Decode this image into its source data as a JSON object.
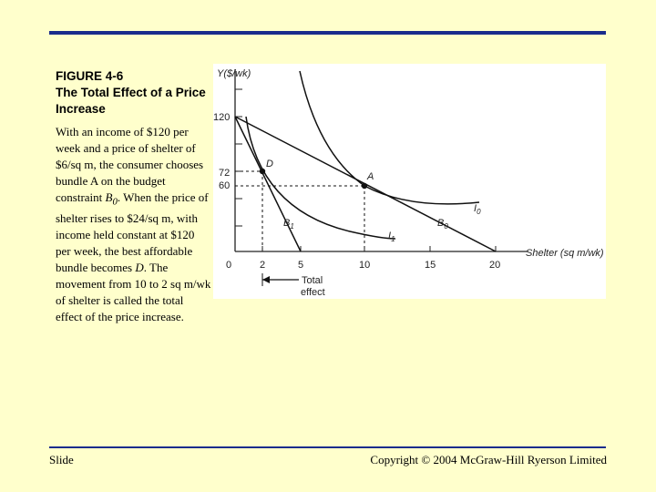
{
  "slide": {
    "title_line1": "FIGURE 4-6",
    "title_line2": "The Total Effect of a Price Increase",
    "body": {
      "p1": "With an income of $120 per week and a price of shelter of  $6/sq m, the consumer chooses bundle A on the budget constraint ",
      "b0_letter": "B",
      "b0_sub": "0",
      "p2": ". When the price of shelter rises to $24/sq m, with income held constant at $120 per week, the best affordable bundle becomes ",
      "d_letter": "D",
      "p3": ". The movement from 10 to 2 sq m/wk of shelter is called the total effect of the price increase."
    },
    "footer_left": "Slide",
    "footer_right": "Copyright © 2004 McGraw-Hill Ryerson Limited"
  },
  "graph": {
    "y_axis_label": "Y($/wk)",
    "x_axis_label": "Shelter (sq m/wk)",
    "y_ticks": [
      "120",
      "72",
      "60"
    ],
    "x_ticks": [
      "0",
      "2",
      "5",
      "10",
      "15",
      "20"
    ],
    "point_labels": [
      "D",
      "A"
    ],
    "curve_labels": [
      "I",
      "0",
      "I",
      "1",
      "B",
      "1",
      "B",
      "0"
    ],
    "arrow_label_line1": "Total",
    "arrow_label_line2": "effect",
    "colors": {
      "background": "#ffffcc",
      "rule": "#1a2c8c",
      "curve": "#111111"
    }
  }
}
